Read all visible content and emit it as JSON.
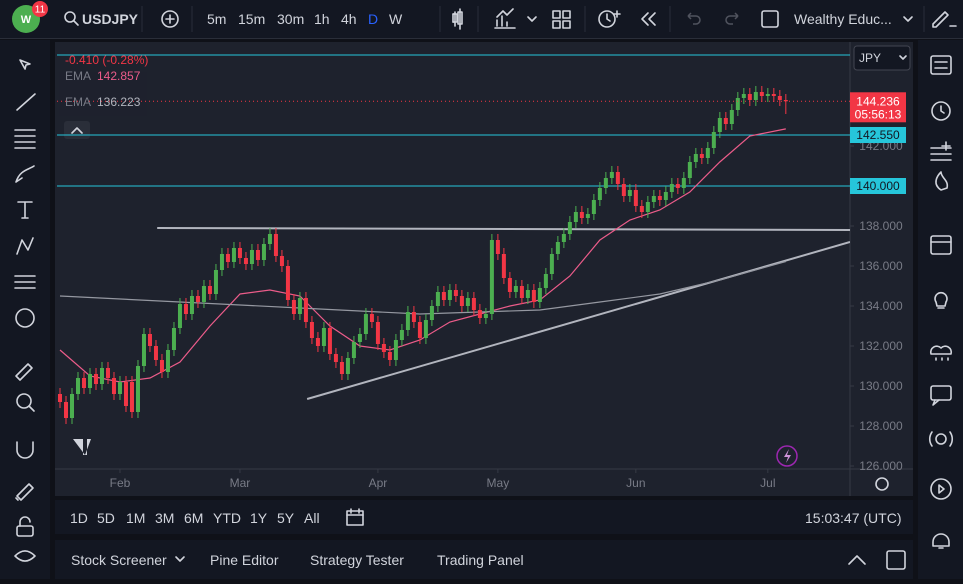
{
  "toolbar": {
    "badge": "11",
    "symbol": "USDJPY",
    "intervals": [
      "5m",
      "15m",
      "30m",
      "1h",
      "4h",
      "D",
      "W"
    ],
    "active_interval": 5,
    "layout": "Wealthy Educ..."
  },
  "chart_data": {
    "type": "candlestick",
    "change": "-0.410 (-0.28%)",
    "currency": "JPY",
    "countdown": "05:56:13",
    "up_color": "#4caf50",
    "down_color": "#f23645",
    "xlim": [
      -0.5,
      131.7
    ],
    "xticks": [
      {
        "value": 10,
        "label": "Feb"
      },
      {
        "value": 30,
        "label": "Mar"
      },
      {
        "value": 53,
        "label": "Apr"
      },
      {
        "value": 73,
        "label": "May"
      },
      {
        "value": 96,
        "label": "Jun"
      },
      {
        "value": 118,
        "label": "Jul"
      }
    ],
    "ylim": [
      125.85,
      147.0
    ],
    "yticks": [
      {
        "value": 126,
        "label": "126.000"
      },
      {
        "value": 128,
        "label": "128.000"
      },
      {
        "value": 130,
        "label": "130.000"
      },
      {
        "value": 132,
        "label": "132.000"
      },
      {
        "value": 134,
        "label": "134.000"
      },
      {
        "value": 136,
        "label": "136.000"
      },
      {
        "value": 138,
        "label": "138.000"
      },
      {
        "value": 142,
        "label": "142.000"
      }
    ],
    "open": [
      129.6,
      129.2,
      128.4,
      129.6,
      130.4,
      129.9,
      130.6,
      130.1,
      130.9,
      130.4,
      129.6,
      130.2,
      130.2,
      128.7,
      131.0,
      132.6,
      132.0,
      131.3,
      130.7,
      131.8,
      132.9,
      134.1,
      133.6,
      134.5,
      134.2,
      135.0,
      134.6,
      135.8,
      136.6,
      136.2,
      136.9,
      136.4,
      136.1,
      136.8,
      136.3,
      137.1,
      137.6,
      136.5,
      136.0,
      134.3,
      133.6,
      134.4,
      133.2,
      132.4,
      132.0,
      132.9,
      131.6,
      131.2,
      130.6,
      131.4,
      132.2,
      132.6,
      133.6,
      133.2,
      132.1,
      131.7,
      131.3,
      132.3,
      132.8,
      133.7,
      133.2,
      132.4,
      133.3,
      134.0,
      134.7,
      134.3,
      134.8,
      134.5,
      134.0,
      134.4,
      133.8,
      133.4,
      133.6,
      137.3,
      136.6,
      135.4,
      134.7,
      135.0,
      134.4,
      134.8,
      134.2,
      134.9,
      135.6,
      136.6,
      137.2,
      137.6,
      138.2,
      138.7,
      138.4,
      138.6,
      139.3,
      139.9,
      140.4,
      140.7,
      140.1,
      139.5,
      139.8,
      139.0,
      138.7,
      139.2,
      139.5,
      139.3,
      139.7,
      140.1,
      139.9,
      140.4,
      141.2,
      141.6,
      141.4,
      141.9,
      142.7,
      143.4,
      143.1,
      143.8,
      144.4,
      144.6,
      144.3,
      144.7,
      144.5,
      144.6,
      144.5,
      144.3
    ],
    "high": [
      129.9,
      129.5,
      129.9,
      130.7,
      130.7,
      130.9,
      130.9,
      131.2,
      131.2,
      130.7,
      130.5,
      130.5,
      130.5,
      131.3,
      132.9,
      132.9,
      132.3,
      131.6,
      132.1,
      133.2,
      134.4,
      134.4,
      134.8,
      134.8,
      135.3,
      135.3,
      136.1,
      136.9,
      136.9,
      137.2,
      137.2,
      136.7,
      137.1,
      137.1,
      137.4,
      137.9,
      137.9,
      136.8,
      136.3,
      134.6,
      134.7,
      134.7,
      133.5,
      132.7,
      133.2,
      133.2,
      131.9,
      131.5,
      131.7,
      132.5,
      132.9,
      133.9,
      133.9,
      133.5,
      132.4,
      132.0,
      132.6,
      133.1,
      134.0,
      134.0,
      133.5,
      133.6,
      134.3,
      135.0,
      135.0,
      135.1,
      135.1,
      134.8,
      134.7,
      134.7,
      134.1,
      133.9,
      137.6,
      137.6,
      136.9,
      135.7,
      135.3,
      135.3,
      135.1,
      135.1,
      135.2,
      135.9,
      136.9,
      137.5,
      137.9,
      138.5,
      139.0,
      139.0,
      138.9,
      139.6,
      140.2,
      140.7,
      141.0,
      141.0,
      140.4,
      140.1,
      140.1,
      139.3,
      139.5,
      139.8,
      139.8,
      140.0,
      140.4,
      140.4,
      140.7,
      141.5,
      141.9,
      141.9,
      142.2,
      143.0,
      143.7,
      143.7,
      144.1,
      144.7,
      144.9,
      144.9,
      145.0,
      145.0,
      144.9,
      144.9,
      144.8,
      144.6
    ],
    "low": [
      128.9,
      128.1,
      128.1,
      129.3,
      129.6,
      129.6,
      129.8,
      129.8,
      130.1,
      129.3,
      129.3,
      128.7,
      128.4,
      128.4,
      130.7,
      131.7,
      131.0,
      130.4,
      130.4,
      131.5,
      132.6,
      133.3,
      133.3,
      133.9,
      133.9,
      134.3,
      134.3,
      135.5,
      135.9,
      135.9,
      136.1,
      135.8,
      135.8,
      136.0,
      136.0,
      136.8,
      136.2,
      135.7,
      134.0,
      133.3,
      133.3,
      132.9,
      132.1,
      131.7,
      131.7,
      131.3,
      130.9,
      130.3,
      130.3,
      131.1,
      131.9,
      132.3,
      132.9,
      131.8,
      131.4,
      131.0,
      131.0,
      132.0,
      132.5,
      132.9,
      132.1,
      132.1,
      133.0,
      133.7,
      134.0,
      134.0,
      134.2,
      133.7,
      133.7,
      133.5,
      133.1,
      133.1,
      133.3,
      136.3,
      135.1,
      134.4,
      134.4,
      134.1,
      134.1,
      133.9,
      133.9,
      134.6,
      135.3,
      136.3,
      136.9,
      137.3,
      137.9,
      138.1,
      138.1,
      138.3,
      139.0,
      139.6,
      140.1,
      139.8,
      139.2,
      139.2,
      138.7,
      138.4,
      138.4,
      138.9,
      139.0,
      139.0,
      139.4,
      139.6,
      139.6,
      140.1,
      140.9,
      141.1,
      141.1,
      141.6,
      142.4,
      142.8,
      142.8,
      143.5,
      144.1,
      144.0,
      144.0,
      144.2,
      144.2,
      144.2,
      144.0,
      143.6
    ],
    "close": [
      129.2,
      128.4,
      129.6,
      130.4,
      129.9,
      130.6,
      130.1,
      130.9,
      130.4,
      129.6,
      130.2,
      129.0,
      128.7,
      131.0,
      132.6,
      132.0,
      131.3,
      130.7,
      131.8,
      132.9,
      134.1,
      133.6,
      134.5,
      134.2,
      135.0,
      134.6,
      135.8,
      136.6,
      136.2,
      136.9,
      136.4,
      136.1,
      136.8,
      136.3,
      137.1,
      137.6,
      136.5,
      136.0,
      134.3,
      133.6,
      134.4,
      133.2,
      132.4,
      132.0,
      132.9,
      131.6,
      131.2,
      130.6,
      131.4,
      132.2,
      132.6,
      133.6,
      133.2,
      132.1,
      131.7,
      131.3,
      132.3,
      132.8,
      133.7,
      133.2,
      132.4,
      133.3,
      134.0,
      134.7,
      134.3,
      134.8,
      134.5,
      134.0,
      134.4,
      133.8,
      133.4,
      133.6,
      137.3,
      136.6,
      135.4,
      134.7,
      135.0,
      134.4,
      134.8,
      134.2,
      134.9,
      135.6,
      136.6,
      137.2,
      137.6,
      138.2,
      138.7,
      138.4,
      138.6,
      139.3,
      139.9,
      140.4,
      140.7,
      140.1,
      139.5,
      139.8,
      139.0,
      138.7,
      139.2,
      139.5,
      139.3,
      139.7,
      140.1,
      139.9,
      140.4,
      141.2,
      141.6,
      141.4,
      141.9,
      142.7,
      143.4,
      143.1,
      143.8,
      144.4,
      144.6,
      144.3,
      144.7,
      144.5,
      144.6,
      144.5,
      144.3,
      144.236
    ],
    "emas": [
      {
        "name": "EMA",
        "color": "#ec5c8a",
        "x": [
          0,
          5,
          10,
          15,
          20,
          25,
          30,
          35,
          40,
          45,
          50,
          55,
          60,
          65,
          70,
          75,
          80,
          85,
          90,
          95,
          100,
          105,
          110,
          115,
          121
        ],
        "values": [
          131.8,
          130.5,
          130.2,
          130.4,
          131.2,
          133.0,
          134.6,
          134.8,
          134.5,
          133.0,
          132.0,
          131.8,
          132.3,
          133.2,
          133.6,
          134.0,
          134.3,
          135.5,
          137.3,
          138.3,
          138.8,
          139.7,
          141.2,
          142.5,
          142.857
        ]
      },
      {
        "name": "EMA",
        "color": "#9598a1",
        "x": [
          0,
          20,
          40,
          60,
          80,
          90,
          100,
          110,
          121
        ],
        "values": [
          134.5,
          134.2,
          133.9,
          133.6,
          133.8,
          134.2,
          134.6,
          135.3,
          136.223
        ]
      }
    ],
    "levels": [
      {
        "value": 146.55
      },
      {
        "value": 142.55,
        "label": "142.550"
      },
      {
        "value": 140,
        "label": "140.000"
      }
    ],
    "level_color": "#26c6da",
    "trendlines": [
      {
        "x": [
          16.2,
          131.7
        ],
        "y": [
          137.9,
          137.8
        ]
      },
      {
        "x": [
          41.2,
          131.7
        ],
        "y": [
          129.35,
          137.2
        ]
      }
    ],
    "trendline_color": "#b2b5be"
  },
  "range_bar": {
    "ranges": [
      "1D",
      "5D",
      "1M",
      "3M",
      "6M",
      "YTD",
      "1Y",
      "5Y",
      "All"
    ],
    "clock": "15:03:47 (UTC)"
  },
  "bottom_panel": {
    "tabs": [
      "Stock Screener",
      "Pine Editor",
      "Strategy Tester",
      "Trading Panel"
    ]
  }
}
